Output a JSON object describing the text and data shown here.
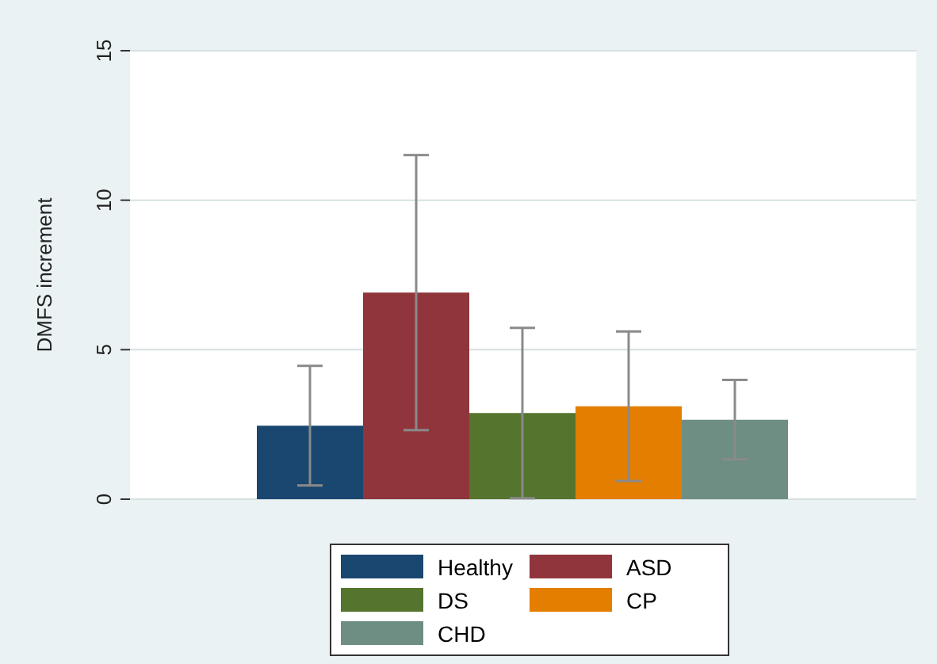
{
  "chart_data": {
    "type": "bar",
    "ylabel": "DMFS increment",
    "categories": [
      null
    ],
    "series": [
      {
        "name": "Healthy",
        "color": "#1a476f",
        "values": [
          2.46
        ],
        "errors": [
          2.0
        ]
      },
      {
        "name": "ASD",
        "color": "#90353b",
        "values": [
          6.91
        ],
        "errors": [
          4.6
        ]
      },
      {
        "name": "DS",
        "color": "#55752f",
        "values": [
          2.88
        ],
        "errors": [
          2.85
        ]
      },
      {
        "name": "CP",
        "color": "#e37e00",
        "values": [
          3.11
        ],
        "errors": [
          2.5
        ]
      },
      {
        "name": "CHD",
        "color": "#6e8e84",
        "values": [
          2.66
        ],
        "errors": [
          1.33
        ]
      }
    ],
    "ylim": [
      0,
      15
    ],
    "yticks": [
      0,
      5,
      10,
      15
    ],
    "grid": "y",
    "legend": "bottom",
    "tick_labels": "y"
  }
}
